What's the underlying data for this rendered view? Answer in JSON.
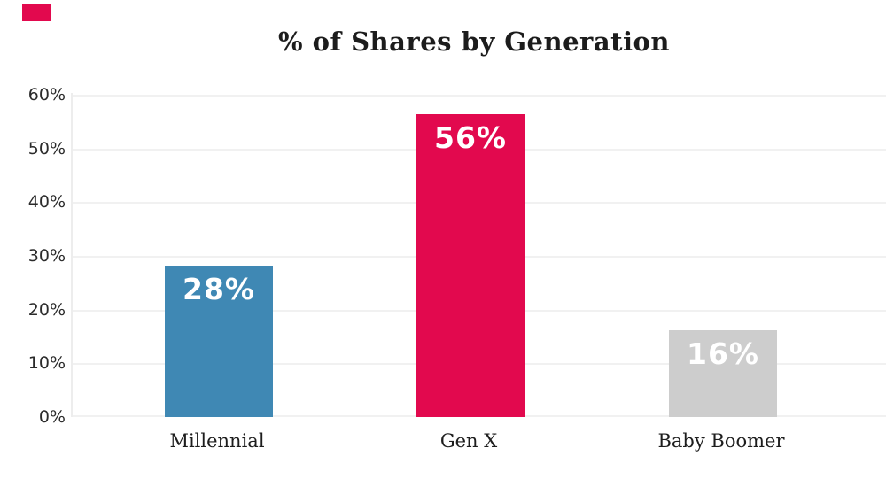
{
  "page": {
    "background_color": "#ffffff",
    "accent_mark_color": "#e2094e"
  },
  "chart_data": {
    "type": "bar",
    "title": "% of Shares by Generation",
    "categories": [
      "Millennial",
      "Gen X",
      "Baby Boomer"
    ],
    "values": [
      28,
      56,
      16
    ],
    "value_labels": [
      "28%",
      "56%",
      "16%"
    ],
    "bar_colors": [
      "#3f88b4",
      "#e2094e",
      "#cdcdcd"
    ],
    "value_label_color": "#ffffff",
    "xlabel": "",
    "ylabel": "",
    "ylim": [
      0,
      60
    ],
    "yticks": [
      0,
      10,
      20,
      30,
      40,
      50,
      60
    ],
    "ytick_labels": [
      "0%",
      "10%",
      "20%",
      "30%",
      "40%",
      "50%",
      "60%"
    ],
    "grid": true,
    "gridline_color": "#f1f1f1",
    "axis_line_color": "#ededed",
    "legend": "none",
    "title_color": "#1c1c1c",
    "tick_label_color": "#2b2b2b"
  }
}
